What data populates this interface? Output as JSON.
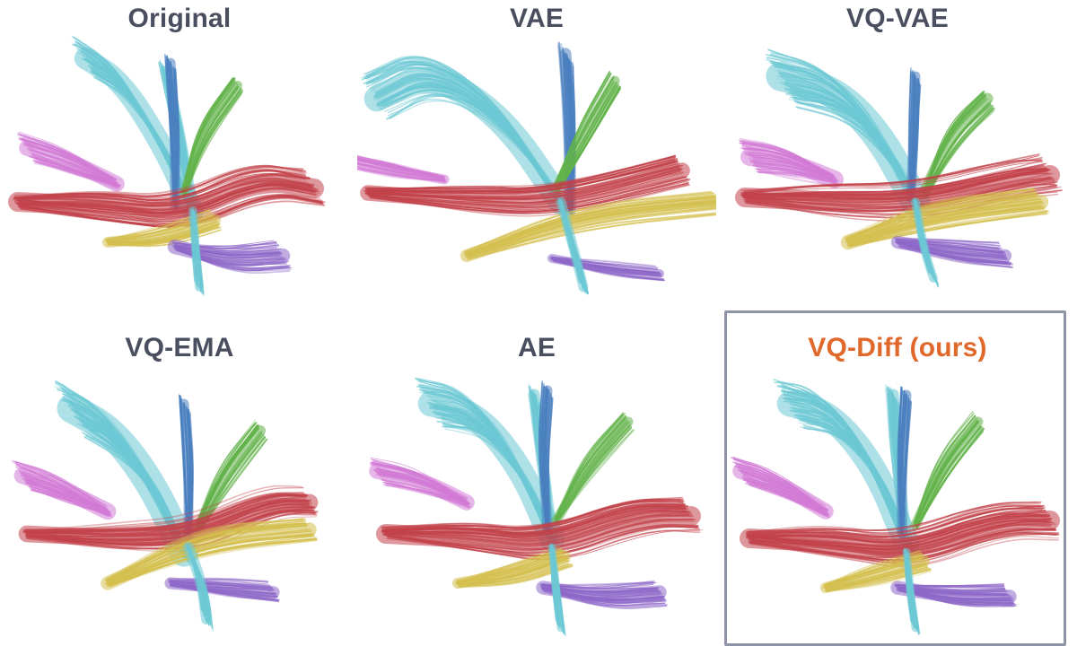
{
  "panels": [
    {
      "title": "Original",
      "variant": "orig"
    },
    {
      "title": "VAE",
      "variant": "vae"
    },
    {
      "title": "VQ-VAE",
      "variant": "vqvae"
    },
    {
      "title": "VQ-EMA",
      "variant": "vqema"
    },
    {
      "title": "AE",
      "variant": "ae"
    },
    {
      "title": "VQ-Diff (ours)",
      "variant": "ours",
      "highlighted": true
    }
  ],
  "colors": {
    "title": "#4a4f60",
    "title_highlight": "#e0682a",
    "box": "#8e93a6",
    "red": "#c2424a",
    "cyan": "#6cc8d4",
    "blue": "#4a7fbf",
    "green": "#62b24a",
    "yellow": "#d4bf4e",
    "purple": "#8e68c8",
    "magenta": "#d27ad6"
  }
}
